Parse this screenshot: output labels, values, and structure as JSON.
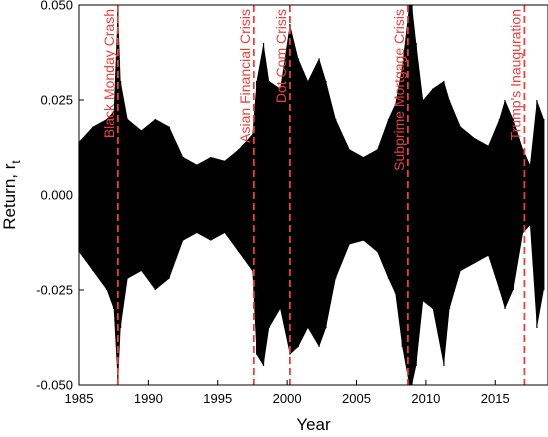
{
  "chart_data": {
    "type": "line",
    "title": "",
    "xlabel": "Year",
    "ylabel": "Return, r",
    "ylabel_subscript": "t",
    "xlim": [
      1985,
      2018.8
    ],
    "ylim": [
      -0.05,
      0.05
    ],
    "x_ticks": [
      1985,
      1990,
      1995,
      2000,
      2005,
      2010,
      2015
    ],
    "y_ticks": [
      -0.05,
      -0.025,
      0.0,
      0.025,
      0.05
    ],
    "y_tick_labels": [
      "-0.050",
      "-0.025",
      "0.000",
      "0.025",
      "0.050"
    ],
    "series": [
      {
        "color": "#000000",
        "x": [
          1985.0,
          1986.0,
          1987.0,
          1987.5,
          1987.8,
          1988.0,
          1988.5,
          1989.5,
          1990.5,
          1991.5,
          1992.5,
          1993.5,
          1994.5,
          1995.5,
          1996.5,
          1997.5,
          1997.8,
          1998.3,
          1998.7,
          1999.5,
          2000.2,
          2000.8,
          2001.5,
          2002.3,
          2002.8,
          2003.5,
          2004.5,
          2005.5,
          2006.5,
          2007.3,
          2007.8,
          2008.3,
          2008.8,
          2009.0,
          2009.3,
          2009.8,
          2010.5,
          2011.3,
          2011.7,
          2012.5,
          2013.5,
          2014.5,
          2015.3,
          2015.7,
          2016.3,
          2017.0,
          2017.5,
          2018.0,
          2018.5
        ],
        "upper": [
          0.014,
          0.018,
          0.02,
          0.022,
          0.05,
          0.03,
          0.02,
          0.017,
          0.02,
          0.018,
          0.01,
          0.008,
          0.01,
          0.009,
          0.012,
          0.016,
          0.03,
          0.04,
          0.03,
          0.028,
          0.045,
          0.036,
          0.03,
          0.036,
          0.03,
          0.02,
          0.012,
          0.01,
          0.012,
          0.02,
          0.024,
          0.034,
          0.05,
          0.05,
          0.04,
          0.025,
          0.028,
          0.03,
          0.025,
          0.018,
          0.015,
          0.013,
          0.02,
          0.025,
          0.02,
          0.012,
          0.008,
          0.025,
          0.02
        ],
        "lower": [
          -0.015,
          -0.02,
          -0.025,
          -0.03,
          -0.05,
          -0.035,
          -0.022,
          -0.02,
          -0.025,
          -0.022,
          -0.012,
          -0.01,
          -0.012,
          -0.01,
          -0.015,
          -0.02,
          -0.042,
          -0.045,
          -0.035,
          -0.03,
          -0.042,
          -0.04,
          -0.035,
          -0.04,
          -0.035,
          -0.022,
          -0.013,
          -0.012,
          -0.015,
          -0.022,
          -0.026,
          -0.04,
          -0.05,
          -0.05,
          -0.045,
          -0.028,
          -0.03,
          -0.045,
          -0.03,
          -0.02,
          -0.018,
          -0.016,
          -0.025,
          -0.03,
          -0.025,
          -0.01,
          -0.008,
          -0.035,
          -0.025
        ]
      }
    ],
    "events": [
      {
        "label": "Black Monday Crash",
        "x": 1987.8
      },
      {
        "label": "Asian Financial Crisis",
        "x": 1997.6
      },
      {
        "label": "Dot Com Crisis",
        "x": 2000.2
      },
      {
        "label": "Subprime Mortgage Crisis",
        "x": 2008.7
      },
      {
        "label": "Trump's Inauguration",
        "x": 2017.1
      }
    ],
    "event_color": "#e8413c",
    "grid": false,
    "legend": "none"
  }
}
